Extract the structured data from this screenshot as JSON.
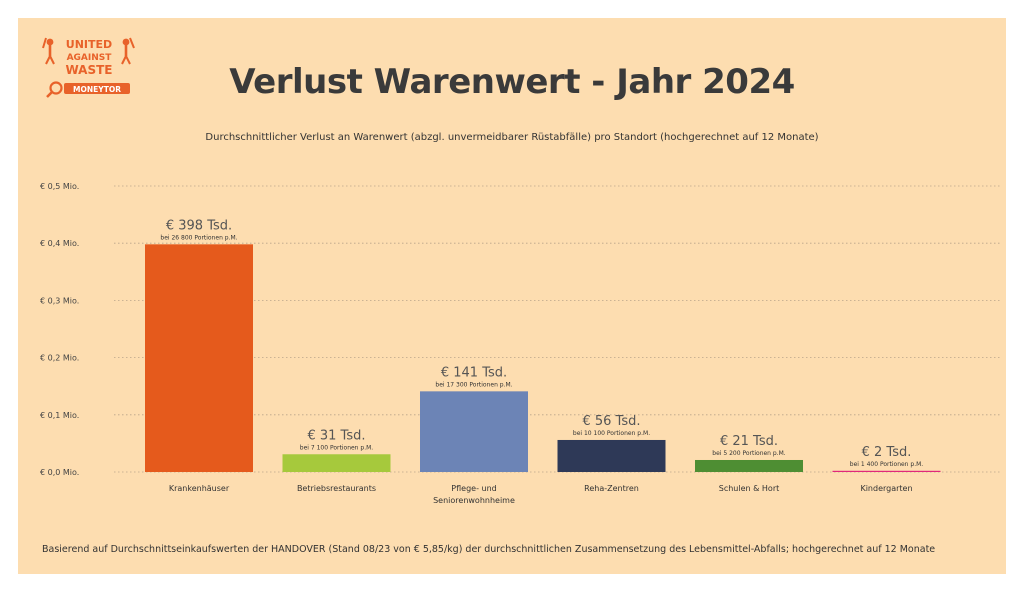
{
  "logo": {
    "line1": "UNITED",
    "line2": "AGAINST",
    "line3": "WASTE",
    "line4": "MONEYTOR"
  },
  "title": "Verlust Warenwert - Jahr 2024",
  "subtitle": "Durchschnittlicher Verlust an Warenwert (abzgl. unvermeidbarer Rüstabfälle) pro Standort (hochgerechnet auf 12 Monate)",
  "footnote": "Basierend auf Durchschnittseinkaufswerten der HANDOVER (Stand 08/23 von € 5,85/kg) der durchschnittlichen Zusammensetzung des Lebensmittel-Abfalls; hochgerechnet auf 12 Monate",
  "colors": {
    "background": "#fdddb0",
    "logo": "#e8622a"
  },
  "chart_data": {
    "type": "bar",
    "ylim": [
      0,
      0.5
    ],
    "yticks": [
      0,
      0.1,
      0.2,
      0.3,
      0.4,
      0.5
    ],
    "ytick_labels": [
      "€ 0,0 Mio.",
      "€ 0,1 Mio.",
      "€ 0,2 Mio.",
      "€ 0,3 Mio.",
      "€ 0,4 Mio.",
      "€ 0,5 Mio."
    ],
    "grid": true,
    "categories": [
      [
        "Krankenhäuser"
      ],
      [
        "Betriebsrestaurants"
      ],
      [
        "Pflege- und",
        "Seniorenwohnheime"
      ],
      [
        "Reha-Zentren"
      ],
      [
        "Schulen & Hort"
      ],
      [
        "Kindergarten"
      ]
    ],
    "values": [
      0.398,
      0.031,
      0.141,
      0.056,
      0.021,
      0.002
    ],
    "value_labels": [
      "€  398 Tsd.",
      "€  31 Tsd.",
      "€  141 Tsd.",
      "€  56 Tsd.",
      "€  21 Tsd.",
      "€  2 Tsd."
    ],
    "notes": [
      "bei 26 800 Portionen p.M.",
      "bei 7 100 Portionen p.M.",
      "bei 17 300 Portionen p.M.",
      "bei 10 100 Portionen p.M.",
      "bei 5 200 Portionen p.M.",
      "bei 1 400 Portionen p.M."
    ],
    "bar_colors": [
      "#e55a1c",
      "#a6c93c",
      "#6c84b6",
      "#2e3957",
      "#4e8e33",
      "#e0287a"
    ]
  }
}
